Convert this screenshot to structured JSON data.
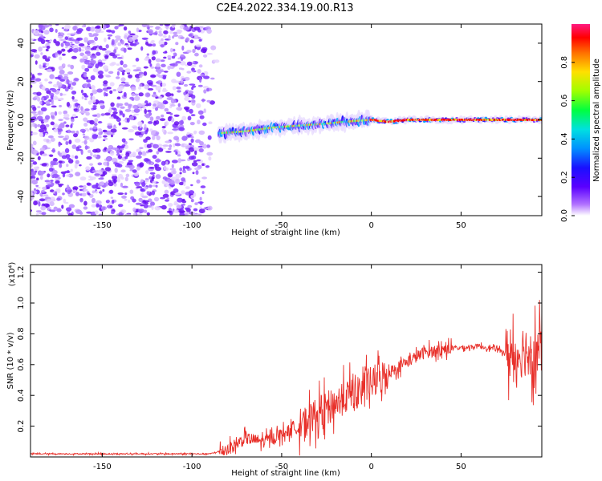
{
  "title": "C2E4.2022.334.19.00.R13",
  "colors": {
    "snr_line": "#e8302a",
    "axis": "#000000"
  },
  "chart_data": [
    {
      "type": "heatmap",
      "xlabel": "Height of straight line (km)",
      "ylabel": "Frequency (Hz)",
      "xlim": [
        -190,
        95
      ],
      "ylim": [
        -50,
        50
      ],
      "x_ticks": [
        -150,
        -100,
        -50,
        0,
        50
      ],
      "y_ticks": [
        -40,
        -20,
        0,
        20,
        40
      ],
      "colorbar": {
        "label": "Normalized spectral amplitude",
        "range": [
          0.0,
          1.0
        ],
        "ticks": [
          "0.0",
          "0.2",
          "0.4",
          "0.6",
          "0.8"
        ],
        "colormap": "rainbow (violet to magenta)"
      },
      "features": {
        "noise_region_x": [
          -190,
          -85
        ],
        "signal_trace": {
          "x": [
            -85,
            -70,
            -55,
            -40,
            -25,
            -15,
            0,
            10,
            20,
            40,
            60,
            80,
            95
          ],
          "freq_hz": [
            -7,
            -6,
            -4,
            -3,
            -2,
            -1,
            0,
            -1,
            0,
            0,
            0,
            0,
            0
          ]
        }
      }
    },
    {
      "type": "line",
      "xlabel": "Height of straight line (km)",
      "ylabel": "SNR (10 * v/v)",
      "y_multiplier": "(x10⁴)",
      "xlim": [
        -190,
        95
      ],
      "ylim": [
        0,
        1.25
      ],
      "x_ticks": [
        -150,
        -100,
        -50,
        0,
        50
      ],
      "y_ticks": [
        0.2,
        0.4,
        0.6,
        0.8,
        1.0,
        1.2
      ],
      "series": [
        {
          "x": [
            -190,
            -160,
            -120,
            -90,
            -80,
            -70,
            -60,
            -50,
            -40,
            -30,
            -20,
            -10,
            0,
            10,
            20,
            30,
            40,
            50,
            60,
            70,
            80,
            85,
            90,
            95
          ],
          "values": [
            0.02,
            0.02,
            0.02,
            0.02,
            0.05,
            0.12,
            0.1,
            0.15,
            0.2,
            0.28,
            0.35,
            0.42,
            0.48,
            0.55,
            0.62,
            0.68,
            0.7,
            0.71,
            0.72,
            0.7,
            0.65,
            0.7,
            0.68,
            0.7
          ]
        }
      ]
    }
  ]
}
